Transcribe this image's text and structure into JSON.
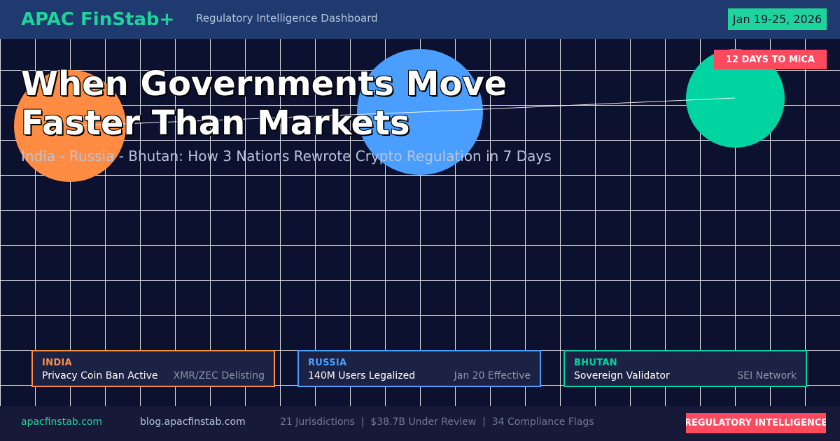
{
  "header": {
    "brand": "APAC FinStab+",
    "subtitle": "Regulatory Intelligence Dashboard",
    "date_range": "Jan 19-25, 2026"
  },
  "hero": {
    "title_line1": "When Governments Move",
    "title_line2": "Faster Than Markets",
    "subtitle": "India - Russia - Bhutan: How 3 Nations Rewrote Crypto Regulation in 7 Days",
    "mica_badge": "12 DAYS TO MiCA"
  },
  "colors": {
    "india": "#ff8c42",
    "russia": "#4a9eff",
    "bhutan": "#00d4a0",
    "accent": "#1fd39c",
    "alert": "#ff4a5e"
  },
  "cards": [
    {
      "country": "INDIA",
      "headline": "Privacy Coin Ban Active",
      "detail": "XMR/ZEC Delisting"
    },
    {
      "country": "RUSSIA",
      "headline": "140M Users Legalized",
      "detail": "Jan 20 Effective"
    },
    {
      "country": "BHUTAN",
      "headline": "Sovereign Validator",
      "detail": "SEI Network"
    }
  ],
  "footer": {
    "site": "apacfinstab.com",
    "blog": "blog.apacfinstab.com",
    "stats": "21 Jurisdictions  |  $38.7B Under Review  |  34 Compliance Flags",
    "badge": "REGULATORY INTELLIGENCE"
  }
}
